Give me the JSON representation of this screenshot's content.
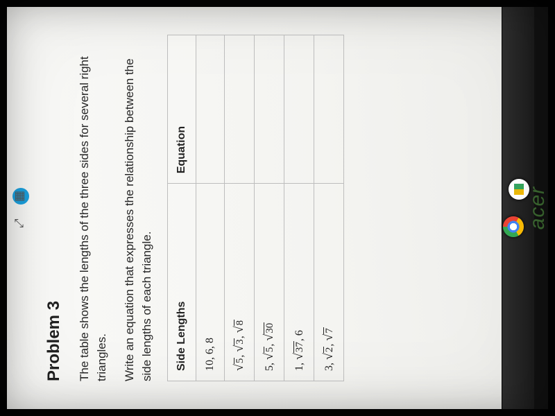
{
  "toolbar": {
    "expand_icon": "⤢",
    "calc_icon": "▦"
  },
  "problem": {
    "title": "Problem 3",
    "p1": "The table shows the lengths of the three sides for several right triangles.",
    "p2": "Write an equation that expresses the relationship between the side lengths of each triangle."
  },
  "table": {
    "header_left": "Side Lengths",
    "header_right": "Equation",
    "rows": [
      {
        "plain": "10, 6, 8"
      },
      {
        "parts": [
          {
            "sqrt": "5"
          },
          ", ",
          {
            "sqrt": "3"
          },
          ", ",
          {
            "sqrt": "8"
          }
        ]
      },
      {
        "parts": [
          "5, ",
          {
            "sqrt": "5"
          },
          ", ",
          {
            "sqrt": "30"
          }
        ]
      },
      {
        "parts": [
          "1, ",
          {
            "sqrt": "37"
          },
          ", 6"
        ]
      },
      {
        "parts": [
          "3, ",
          {
            "sqrt": "2"
          },
          ", ",
          {
            "sqrt": "7"
          }
        ]
      }
    ],
    "border_color": "#bdbdbd",
    "header_fontsize": 16,
    "cell_fontsize": 16
  },
  "colors": {
    "page_bg": "#f7f7f4",
    "text": "#222222",
    "accent": "#1a9cd8"
  },
  "taskbar": {
    "chrome": "chrome-icon",
    "drive": "drive-icon"
  },
  "brand": "acer"
}
